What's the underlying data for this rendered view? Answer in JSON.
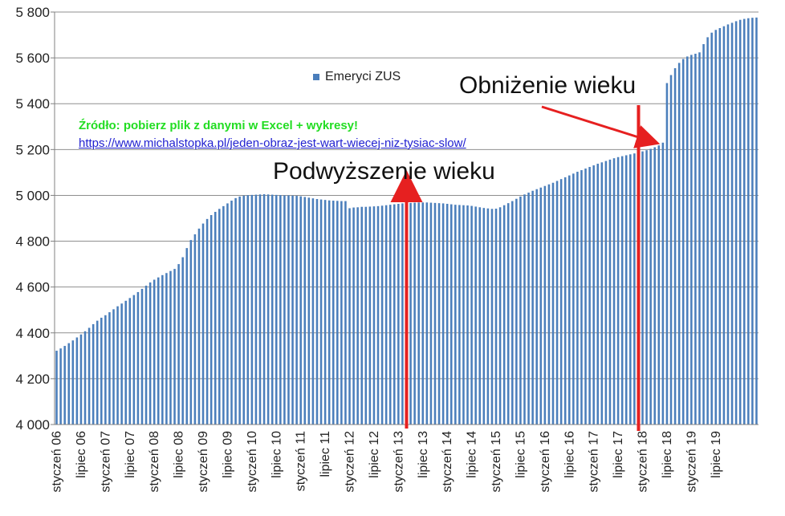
{
  "chart_data": {
    "type": "bar",
    "title": "",
    "xlabel": "",
    "ylabel": "",
    "ylim": [
      4000,
      5800
    ],
    "yticks": [
      4000,
      4200,
      4400,
      4600,
      4800,
      5000,
      5200,
      5400,
      5600,
      5800
    ],
    "ytick_labels": [
      "4 000",
      "4 200",
      "4 400",
      "4 600",
      "4 800",
      "5 000",
      "5 200",
      "5 400",
      "5 600",
      "5 800"
    ],
    "x_tick_labels": [
      "styczeń 06",
      "lipiec 06",
      "styczeń 07",
      "lipiec 07",
      "styczeń 08",
      "lipiec 08",
      "styczeń 09",
      "lipiec 09",
      "styczeń 10",
      "lipiec 10",
      "styczeń 11",
      "lipiec 11",
      "styczeń 12",
      "lipiec 12",
      "styczeń 13",
      "lipiec 13",
      "styczeń 14",
      "lipiec 14",
      "styczeń 15",
      "lipiec 15",
      "styczeń 16",
      "lipiec 16",
      "styczeń 17",
      "lipiec 17",
      "styczeń 18",
      "lipiec 18",
      "styczeń 19",
      "lipiec 19"
    ],
    "grid": true,
    "legend_position": "top-center",
    "bar_color": "#4a7ebb",
    "series": [
      {
        "name": "Emeryci ZUS",
        "values": [
          4322,
          4332,
          4343,
          4355,
          4367,
          4380,
          4393,
          4407,
          4422,
          4438,
          4453,
          4466,
          4477,
          4490,
          4503,
          4516,
          4528,
          4540,
          4552,
          4565,
          4578,
          4592,
          4606,
          4620,
          4632,
          4642,
          4652,
          4661,
          4670,
          4679,
          4700,
          4730,
          4770,
          4805,
          4830,
          4855,
          4877,
          4897,
          4914,
          4928,
          4941,
          4953,
          4965,
          4977,
          4988,
          4995,
          4999,
          5001,
          5002,
          5003,
          5004,
          5005,
          5004,
          5003,
          5002,
          5001,
          5000,
          5000,
          4999,
          4998,
          4996,
          4993,
          4990,
          4987,
          4984,
          4982,
          4980,
          4978,
          4977,
          4976,
          4975,
          4975,
          4944,
          4947,
          4948,
          4950,
          4950,
          4951,
          4952,
          4953,
          4955,
          4957,
          4959,
          4961,
          4963,
          4965,
          4966,
          4967,
          4968,
          4969,
          4969,
          4969,
          4968,
          4967,
          4966,
          4965,
          4963,
          4961,
          4959,
          4958,
          4957,
          4956,
          4954,
          4951,
          4948,
          4945,
          4943,
          4941,
          4942,
          4948,
          4957,
          4966,
          4975,
          4985,
          4995,
          5004,
          5012,
          5020,
          5027,
          5034,
          5041,
          5048,
          5055,
          5063,
          5071,
          5079,
          5087,
          5095,
          5103,
          5110,
          5117,
          5124,
          5131,
          5138,
          5144,
          5150,
          5156,
          5162,
          5167,
          5171,
          5175,
          5179,
          5183,
          5187,
          5192,
          5197,
          5203,
          5210,
          5218,
          5230,
          5490,
          5525,
          5555,
          5578,
          5595,
          5606,
          5613,
          5618,
          5624,
          5660,
          5690,
          5710,
          5722,
          5730,
          5738,
          5746,
          5753,
          5760,
          5766,
          5770,
          5773,
          5775,
          5776
        ]
      }
    ]
  },
  "legend": {
    "label": "Emeryci ZUS"
  },
  "source": {
    "title": "Źródło: pobierz plik z danymi w Excel + wykresy!",
    "link": "https://www.michalstopka.pl/jeden-obraz-jest-wart-wiecej-niz-tysiac-slow/"
  },
  "annotations": {
    "raise": "Podwyższenie wieku",
    "lower": "Obniżenie wieku"
  },
  "colors": {
    "bar": "#4a7ebb",
    "arrow": "#e62020",
    "grid": "#8f8f8f",
    "source_title": "#22dd22",
    "link": "#1f1fd0"
  }
}
